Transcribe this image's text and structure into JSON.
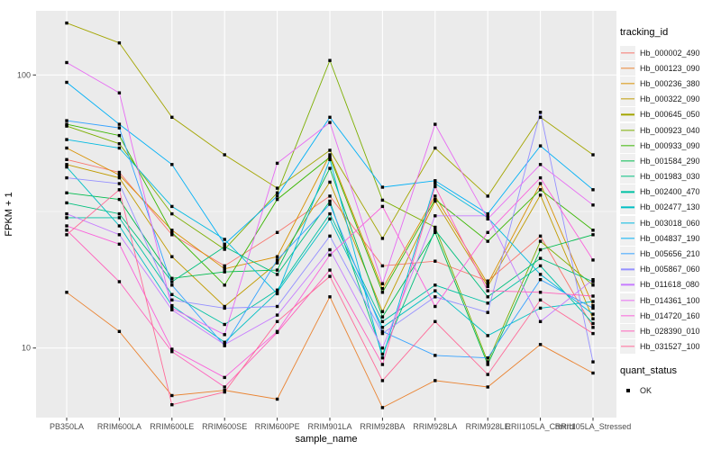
{
  "chart_data": {
    "type": "line",
    "x_axis_label": "sample_name",
    "y_axis_label": "FPKM + 1",
    "y_scale": "log10",
    "y_tick_labels": [
      "100",
      "10"
    ],
    "y_tick_values": [
      100,
      10
    ],
    "y_minor_gridline_values": [
      31.62
    ],
    "ylim": [
      5.6,
      169
    ],
    "grid": "on",
    "panel_background": "#EBEBEB",
    "gridline_color": "#FFFFFF",
    "point_shape": "filled-square",
    "point_color": "#000000",
    "legend_position": "right",
    "legend": {
      "color_title": "tracking_id",
      "shape_title": "quant_status",
      "shape_entries": [
        {
          "label": "OK"
        }
      ]
    },
    "categories": [
      "PB350LA",
      "RRIM600LA",
      "RRIM600LE",
      "RRIM600SE",
      "RRIM600PE",
      "RRIM901LA",
      "RRIM928BA",
      "RRIM928LA",
      "RRIM928LE",
      "RRII105LA_Control",
      "RRII105LA_Stressed"
    ],
    "series": [
      {
        "name": "Hb_000002_490",
        "color": "#F8766D",
        "values": [
          49,
          44,
          26,
          20,
          26.5,
          36,
          20,
          20.8,
          17.6,
          25.7,
          11.9
        ]
      },
      {
        "name": "Hb_000123_090",
        "color": "#EA8331",
        "values": [
          16,
          11.5,
          6.7,
          7,
          6.5,
          15.4,
          6.05,
          7.6,
          7.2,
          10.3,
          8.1
        ]
      },
      {
        "name": "Hb_000236_380",
        "color": "#D89000",
        "values": [
          54,
          43,
          27,
          19.5,
          21.6,
          51,
          16.5,
          36,
          17.2,
          40,
          14.3
        ]
      },
      {
        "name": "Hb_000322_090",
        "color": "#C09B00",
        "values": [
          47,
          42,
          21.6,
          14.2,
          20.5,
          40.5,
          13.6,
          34.5,
          16.8,
          36.3,
          12.8
        ]
      },
      {
        "name": "Hb_000645_050",
        "color": "#A3A500",
        "values": [
          155,
          131,
          70,
          51,
          38.5,
          53,
          25.2,
          54,
          36,
          70,
          51
        ]
      },
      {
        "name": "Hb_000923_040",
        "color": "#7CAE00",
        "values": [
          65,
          56,
          31,
          23,
          37,
          113,
          34.8,
          27.7,
          8.9,
          24.6,
          17
        ]
      },
      {
        "name": "Hb_000933_090",
        "color": "#39B600",
        "values": [
          66,
          60,
          26.5,
          17,
          35,
          50,
          16,
          35,
          24.6,
          38,
          27
        ]
      },
      {
        "name": "Hb_001584_290",
        "color": "#00BB4E",
        "values": [
          37,
          35,
          18,
          19,
          19.3,
          45.5,
          13,
          26.5,
          8.7,
          22.9,
          26
        ]
      },
      {
        "name": "Hb_001983_030",
        "color": "#00BF7D",
        "values": [
          34,
          31,
          17.5,
          23.5,
          18.6,
          34.5,
          9.5,
          27,
          15.4,
          21.3,
          17.5
        ]
      },
      {
        "name": "Hb_002400_470",
        "color": "#00C1A3",
        "values": [
          30,
          30,
          15.7,
          12.2,
          16.3,
          31,
          12.5,
          17,
          14.6,
          20,
          12.3
        ]
      },
      {
        "name": "Hb_002477_130",
        "color": "#00BFC4",
        "values": [
          46,
          28,
          14.3,
          10.5,
          16,
          29.7,
          11.9,
          16.2,
          11.1,
          14,
          14.8
        ]
      },
      {
        "name": "Hb_003018_060",
        "color": "#00BAE0",
        "values": [
          58,
          54,
          33,
          25,
          15.8,
          49,
          9.2,
          40,
          30,
          18.6,
          13.3
        ]
      },
      {
        "name": "Hb_004837_190",
        "color": "#00B0F6",
        "values": [
          94,
          66,
          47,
          24,
          36,
          70,
          38.8,
          41,
          31,
          55,
          38
        ]
      },
      {
        "name": "Hb_005656_210",
        "color": "#35A2FF",
        "values": [
          68,
          64,
          17,
          10.2,
          21,
          33.6,
          11.5,
          9.4,
          9.2,
          17.8,
          14
        ]
      },
      {
        "name": "Hb_005867_060",
        "color": "#9590FF",
        "values": [
          42,
          40,
          15,
          14,
          14.2,
          25.7,
          11.3,
          15.4,
          13.5,
          73,
          8.9
        ]
      },
      {
        "name": "Hb_011618_080",
        "color": "#C77CFF",
        "values": [
          31,
          26,
          13.8,
          10.3,
          13.2,
          22.9,
          10,
          30.5,
          30.5,
          12.5,
          17.8
        ]
      },
      {
        "name": "Hb_014361_100",
        "color": "#E76BF3",
        "values": [
          111,
          86,
          14,
          11.2,
          47.5,
          67,
          17.2,
          66,
          29.7,
          47,
          33.4
        ]
      },
      {
        "name": "Hb_014720_160",
        "color": "#FA62DB",
        "values": [
          28,
          24,
          9.9,
          7.8,
          11.5,
          21.9,
          33,
          14.2,
          26.5,
          42,
          21
        ]
      },
      {
        "name": "Hb_028390_010",
        "color": "#FF62BC",
        "values": [
          27,
          17.5,
          9.7,
          7.2,
          11.4,
          19.3,
          8.7,
          39,
          16.2,
          16,
          15.5
        ]
      },
      {
        "name": "Hb_031527_100",
        "color": "#FF6A98",
        "values": [
          26,
          38,
          6.2,
          6.9,
          12.5,
          18.3,
          7.6,
          12.5,
          8,
          15,
          11.3
        ]
      }
    ]
  }
}
